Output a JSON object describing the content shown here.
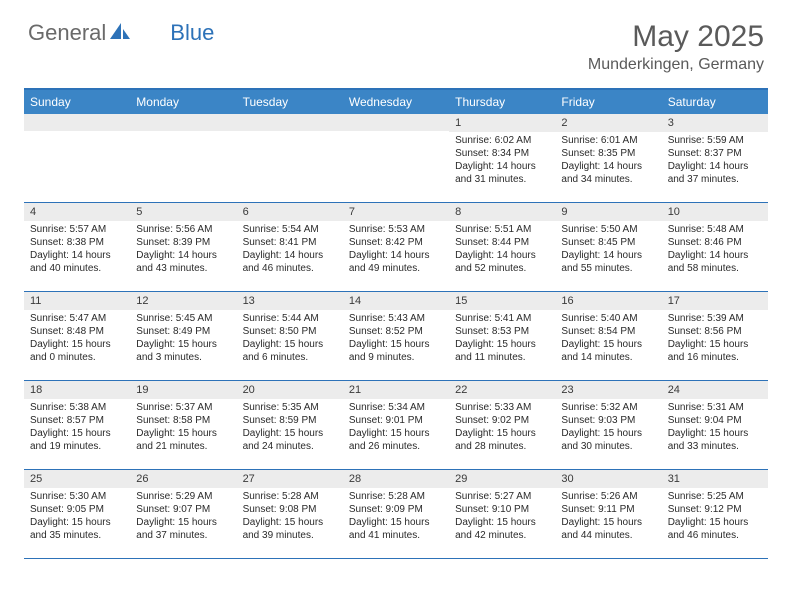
{
  "brand": {
    "part1": "General",
    "part2": "Blue"
  },
  "title": {
    "month": "May 2025",
    "location": "Munderkingen, Germany"
  },
  "dow": [
    "Sunday",
    "Monday",
    "Tuesday",
    "Wednesday",
    "Thursday",
    "Friday",
    "Saturday"
  ],
  "style": {
    "accent": "#3b85c6",
    "band": "#ececec",
    "rule": "#2d72b8",
    "text": "#2a2a2a",
    "title_color": "#5a5a5a",
    "logo_gray": "#6a6a6a",
    "title_fontsize": 30,
    "loc_fontsize": 16,
    "dow_fontsize": 12,
    "cell_fontsize": 10
  },
  "weeks": [
    [
      {
        "empty": true
      },
      {
        "empty": true
      },
      {
        "empty": true
      },
      {
        "empty": true
      },
      {
        "n": "1",
        "sunrise": "6:02 AM",
        "sunset": "8:34 PM",
        "dl1": "14 hours",
        "dl2": "and 31 minutes."
      },
      {
        "n": "2",
        "sunrise": "6:01 AM",
        "sunset": "8:35 PM",
        "dl1": "14 hours",
        "dl2": "and 34 minutes."
      },
      {
        "n": "3",
        "sunrise": "5:59 AM",
        "sunset": "8:37 PM",
        "dl1": "14 hours",
        "dl2": "and 37 minutes."
      }
    ],
    [
      {
        "n": "4",
        "sunrise": "5:57 AM",
        "sunset": "8:38 PM",
        "dl1": "14 hours",
        "dl2": "and 40 minutes."
      },
      {
        "n": "5",
        "sunrise": "5:56 AM",
        "sunset": "8:39 PM",
        "dl1": "14 hours",
        "dl2": "and 43 minutes."
      },
      {
        "n": "6",
        "sunrise": "5:54 AM",
        "sunset": "8:41 PM",
        "dl1": "14 hours",
        "dl2": "and 46 minutes."
      },
      {
        "n": "7",
        "sunrise": "5:53 AM",
        "sunset": "8:42 PM",
        "dl1": "14 hours",
        "dl2": "and 49 minutes."
      },
      {
        "n": "8",
        "sunrise": "5:51 AM",
        "sunset": "8:44 PM",
        "dl1": "14 hours",
        "dl2": "and 52 minutes."
      },
      {
        "n": "9",
        "sunrise": "5:50 AM",
        "sunset": "8:45 PM",
        "dl1": "14 hours",
        "dl2": "and 55 minutes."
      },
      {
        "n": "10",
        "sunrise": "5:48 AM",
        "sunset": "8:46 PM",
        "dl1": "14 hours",
        "dl2": "and 58 minutes."
      }
    ],
    [
      {
        "n": "11",
        "sunrise": "5:47 AM",
        "sunset": "8:48 PM",
        "dl1": "15 hours",
        "dl2": "and 0 minutes."
      },
      {
        "n": "12",
        "sunrise": "5:45 AM",
        "sunset": "8:49 PM",
        "dl1": "15 hours",
        "dl2": "and 3 minutes."
      },
      {
        "n": "13",
        "sunrise": "5:44 AM",
        "sunset": "8:50 PM",
        "dl1": "15 hours",
        "dl2": "and 6 minutes."
      },
      {
        "n": "14",
        "sunrise": "5:43 AM",
        "sunset": "8:52 PM",
        "dl1": "15 hours",
        "dl2": "and 9 minutes."
      },
      {
        "n": "15",
        "sunrise": "5:41 AM",
        "sunset": "8:53 PM",
        "dl1": "15 hours",
        "dl2": "and 11 minutes."
      },
      {
        "n": "16",
        "sunrise": "5:40 AM",
        "sunset": "8:54 PM",
        "dl1": "15 hours",
        "dl2": "and 14 minutes."
      },
      {
        "n": "17",
        "sunrise": "5:39 AM",
        "sunset": "8:56 PM",
        "dl1": "15 hours",
        "dl2": "and 16 minutes."
      }
    ],
    [
      {
        "n": "18",
        "sunrise": "5:38 AM",
        "sunset": "8:57 PM",
        "dl1": "15 hours",
        "dl2": "and 19 minutes."
      },
      {
        "n": "19",
        "sunrise": "5:37 AM",
        "sunset": "8:58 PM",
        "dl1": "15 hours",
        "dl2": "and 21 minutes."
      },
      {
        "n": "20",
        "sunrise": "5:35 AM",
        "sunset": "8:59 PM",
        "dl1": "15 hours",
        "dl2": "and 24 minutes."
      },
      {
        "n": "21",
        "sunrise": "5:34 AM",
        "sunset": "9:01 PM",
        "dl1": "15 hours",
        "dl2": "and 26 minutes."
      },
      {
        "n": "22",
        "sunrise": "5:33 AM",
        "sunset": "9:02 PM",
        "dl1": "15 hours",
        "dl2": "and 28 minutes."
      },
      {
        "n": "23",
        "sunrise": "5:32 AM",
        "sunset": "9:03 PM",
        "dl1": "15 hours",
        "dl2": "and 30 minutes."
      },
      {
        "n": "24",
        "sunrise": "5:31 AM",
        "sunset": "9:04 PM",
        "dl1": "15 hours",
        "dl2": "and 33 minutes."
      }
    ],
    [
      {
        "n": "25",
        "sunrise": "5:30 AM",
        "sunset": "9:05 PM",
        "dl1": "15 hours",
        "dl2": "and 35 minutes."
      },
      {
        "n": "26",
        "sunrise": "5:29 AM",
        "sunset": "9:07 PM",
        "dl1": "15 hours",
        "dl2": "and 37 minutes."
      },
      {
        "n": "27",
        "sunrise": "5:28 AM",
        "sunset": "9:08 PM",
        "dl1": "15 hours",
        "dl2": "and 39 minutes."
      },
      {
        "n": "28",
        "sunrise": "5:28 AM",
        "sunset": "9:09 PM",
        "dl1": "15 hours",
        "dl2": "and 41 minutes."
      },
      {
        "n": "29",
        "sunrise": "5:27 AM",
        "sunset": "9:10 PM",
        "dl1": "15 hours",
        "dl2": "and 42 minutes."
      },
      {
        "n": "30",
        "sunrise": "5:26 AM",
        "sunset": "9:11 PM",
        "dl1": "15 hours",
        "dl2": "and 44 minutes."
      },
      {
        "n": "31",
        "sunrise": "5:25 AM",
        "sunset": "9:12 PM",
        "dl1": "15 hours",
        "dl2": "and 46 minutes."
      }
    ]
  ],
  "labels": {
    "sunrise": "Sunrise: ",
    "sunset": "Sunset: ",
    "daylight": "Daylight: "
  }
}
